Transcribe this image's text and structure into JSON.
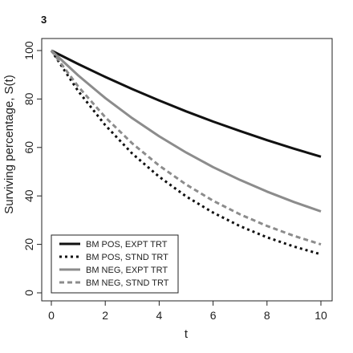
{
  "panel_label": "3",
  "chart_data": {
    "type": "line",
    "title": "",
    "xlabel": "t",
    "ylabel": "Surviving percentage, S(t)",
    "xlim": [
      0,
      10
    ],
    "ylim": [
      0,
      100
    ],
    "xticks": [
      0,
      2,
      4,
      6,
      8,
      10
    ],
    "yticks": [
      0,
      20,
      40,
      60,
      80,
      100
    ],
    "grid": false,
    "legend_position": "bottom-left",
    "x": [
      0,
      1,
      2,
      3,
      4,
      5,
      6,
      7,
      8,
      9,
      10
    ],
    "series": [
      {
        "name": "BM POS, EXPT TRT",
        "color": "#111111",
        "dash": "solid",
        "values": [
          100,
          94.4,
          89.1,
          84.1,
          79.4,
          74.9,
          70.7,
          66.8,
          63.0,
          59.5,
          56.2
        ]
      },
      {
        "name": "BM POS, STND TRT",
        "color": "#111111",
        "dash": "dotted",
        "values": [
          100,
          83.2,
          69.2,
          57.5,
          47.9,
          39.8,
          33.1,
          27.5,
          22.9,
          19.1,
          15.9
        ]
      },
      {
        "name": "BM NEG, EXPT TRT",
        "color": "#8c8c8c",
        "dash": "solid",
        "values": [
          100,
          89.7,
          80.4,
          72.1,
          64.6,
          57.9,
          51.9,
          46.6,
          41.8,
          37.5,
          33.6
        ]
      },
      {
        "name": "BM NEG, STND TRT",
        "color": "#8c8c8c",
        "dash": "dashed",
        "values": [
          100,
          85.1,
          72.5,
          61.7,
          52.5,
          44.7,
          38.0,
          32.4,
          27.6,
          23.5,
          20.0
        ]
      }
    ]
  }
}
